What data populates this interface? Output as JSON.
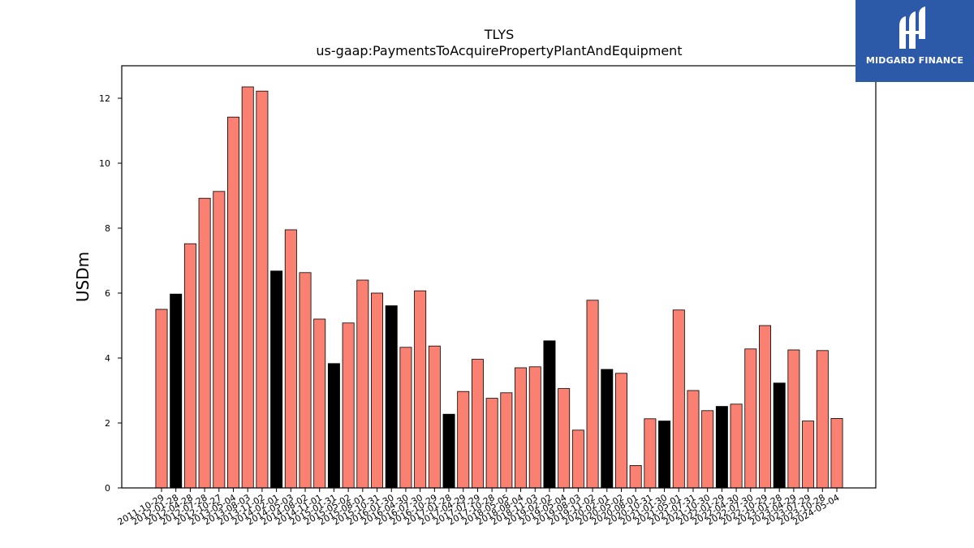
{
  "logo": {
    "name": "MIDGARD FINANCE",
    "bg": "#2d5aa8"
  },
  "colors": {
    "normal": "#fa8072",
    "highlight": "#000000",
    "edge": "#000000"
  },
  "chart_data": {
    "type": "bar",
    "title": "TLYS",
    "subtitle": "us-gaap:PaymentsToAcquirePropertyPlantAndEquipment",
    "xlabel": "",
    "ylabel": "USDm",
    "ylim": [
      0,
      13
    ],
    "yticks": [
      0,
      2,
      4,
      6,
      8,
      10,
      12
    ],
    "grid": false,
    "categories": [
      "2011-10-29",
      "2012-01-28",
      "2012-04-28",
      "2012-07-28",
      "2012-10-27",
      "2013-05-04",
      "2013-08-03",
      "2013-11-02",
      "2014-02-01",
      "2014-05-03",
      "2014-08-02",
      "2014-11-01",
      "2015-01-31",
      "2015-05-02",
      "2015-08-01",
      "2015-10-31",
      "2016-01-30",
      "2016-04-30",
      "2016-07-30",
      "2016-10-29",
      "2017-01-28",
      "2017-04-29",
      "2017-07-29",
      "2017-10-28",
      "2018-05-05",
      "2018-08-04",
      "2018-11-03",
      "2019-02-02",
      "2019-05-04",
      "2019-08-03",
      "2019-11-02",
      "2020-02-01",
      "2020-05-02",
      "2020-08-01",
      "2020-10-31",
      "2021-01-30",
      "2021-05-01",
      "2021-07-31",
      "2021-10-30",
      "2022-01-29",
      "2022-04-30",
      "2022-07-30",
      "2022-10-29",
      "2023-01-28",
      "2023-04-29",
      "2023-07-29",
      "2023-10-28",
      "2024-05-04"
    ],
    "values": [
      5.5,
      5.97,
      7.52,
      8.92,
      9.13,
      11.42,
      12.35,
      12.22,
      6.68,
      7.95,
      6.63,
      5.2,
      3.83,
      5.08,
      6.4,
      6.0,
      5.61,
      4.33,
      6.07,
      4.37,
      2.27,
      2.97,
      3.96,
      2.76,
      2.93,
      3.7,
      3.73,
      4.53,
      3.06,
      1.78,
      5.78,
      3.65,
      3.53,
      0.69,
      2.13,
      2.06,
      5.48,
      3.0,
      2.38,
      2.51,
      2.58,
      4.28,
      5.0,
      3.23,
      4.25,
      2.06,
      4.23,
      2.14
    ],
    "highlight": [
      false,
      true,
      false,
      false,
      false,
      false,
      false,
      false,
      true,
      false,
      false,
      false,
      true,
      false,
      false,
      false,
      true,
      false,
      false,
      false,
      true,
      false,
      false,
      false,
      false,
      false,
      false,
      true,
      false,
      false,
      false,
      true,
      false,
      false,
      false,
      true,
      false,
      false,
      false,
      true,
      false,
      false,
      false,
      true,
      false,
      false,
      false,
      false
    ]
  }
}
